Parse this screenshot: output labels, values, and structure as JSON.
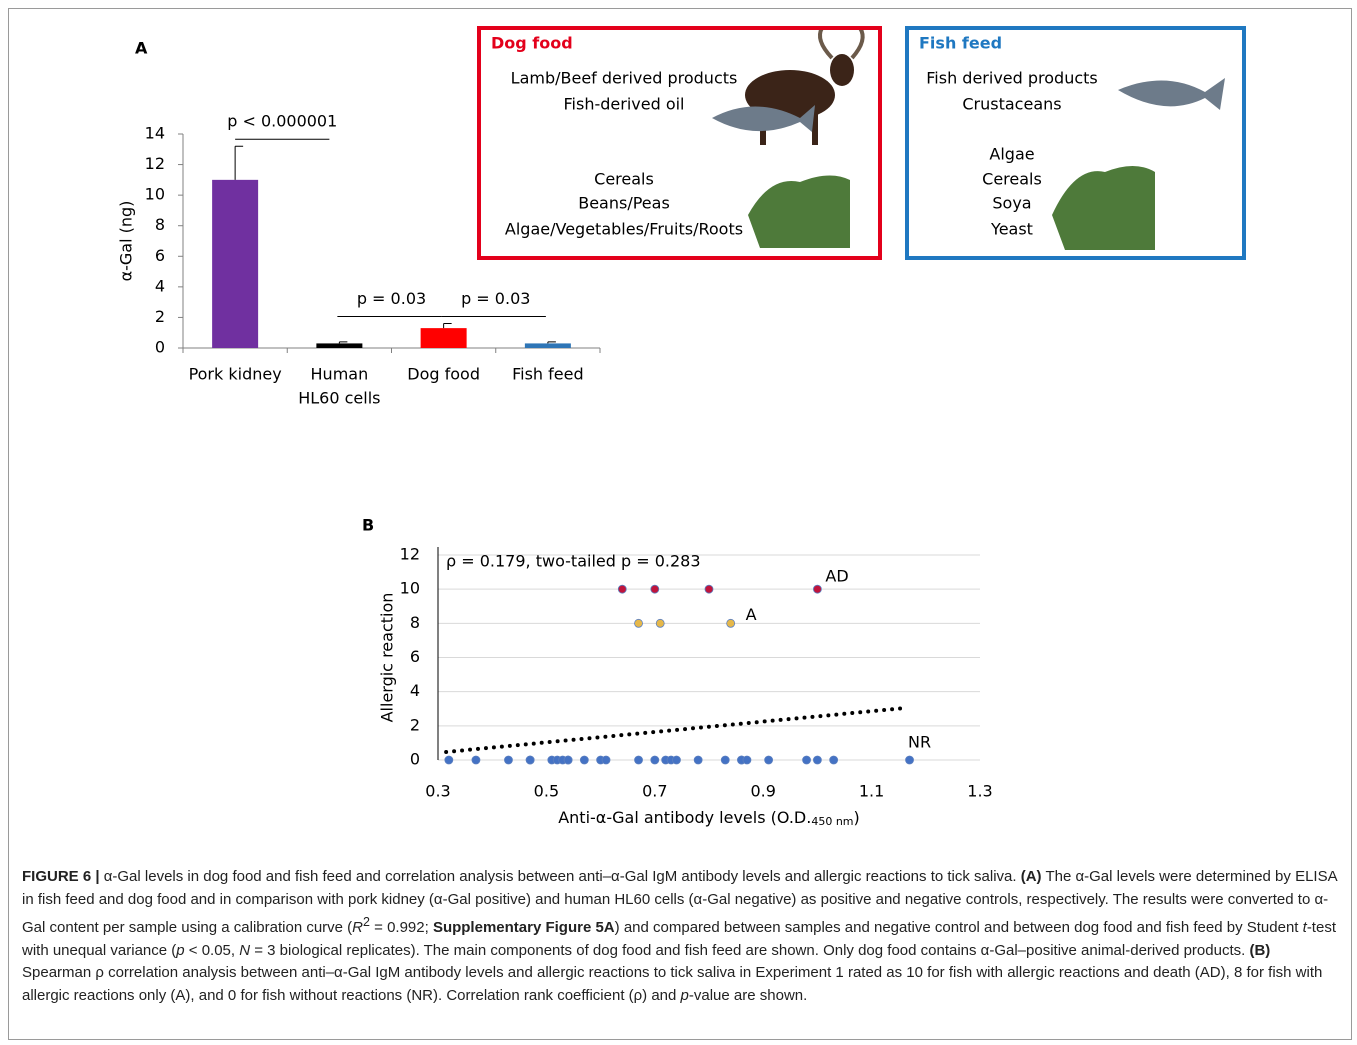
{
  "chart_data": [
    {
      "type": "bar",
      "panel_label": "A",
      "categories": [
        "Pork kidney",
        [
          "Human",
          "HL60 cells"
        ],
        "Dog food",
        "Fish feed"
      ],
      "values": [
        11,
        0.3,
        1.3,
        0.3
      ],
      "errors": [
        2.2,
        0.1,
        0.3,
        0.1
      ],
      "colors": [
        "#7030a0",
        "#000000",
        "#ff0000",
        "#2e75b6"
      ],
      "ylabel": "α-Gal (ng)",
      "ylim": [
        0,
        14
      ],
      "yticks": [
        0,
        2,
        4,
        6,
        8,
        10,
        12,
        14
      ],
      "annotations": [
        "p < 0.000001",
        "p = 0.03",
        "p = 0.03"
      ]
    },
    {
      "type": "scatter",
      "panel_label": "B",
      "annotation": "ρ  = 0.179, two-tailed p = 0.283",
      "xlabel": [
        "Anti-α-Gal antibody levels (O.D.",
        "450 nm",
        ")"
      ],
      "ylabel": "Allergic reaction",
      "xlim": [
        0.3,
        1.3
      ],
      "xticks": [
        0.3,
        0.5,
        0.7,
        0.9,
        1.1,
        1.3
      ],
      "ylim": [
        0,
        12
      ],
      "yticks": [
        0,
        2,
        4,
        6,
        8,
        10,
        12
      ],
      "grid": true,
      "series": [
        {
          "name": "AD",
          "color": "#c0143c",
          "x": [
            0.64,
            0.7,
            0.8,
            1.0
          ],
          "values": [
            10,
            10,
            10,
            10
          ]
        },
        {
          "name": "A",
          "color": "#e6b84a",
          "x": [
            0.67,
            0.71,
            0.84
          ],
          "values": [
            8,
            8,
            8
          ]
        },
        {
          "name": "NR",
          "color": "#4472c4",
          "x": [
            0.32,
            0.37,
            0.43,
            0.47,
            0.47,
            0.51,
            0.52,
            0.53,
            0.54,
            0.54,
            0.57,
            0.6,
            0.61,
            0.67,
            0.7,
            0.72,
            0.73,
            0.74,
            0.78,
            0.83,
            0.86,
            0.86,
            0.87,
            0.91,
            0.98,
            1.0,
            1.03,
            1.17
          ],
          "values": [
            0,
            0,
            0,
            0,
            0,
            0,
            0,
            0,
            0,
            0,
            0,
            0,
            0,
            0,
            0,
            0,
            0,
            0,
            0,
            0,
            0,
            0,
            0,
            0,
            0,
            0,
            0,
            0
          ]
        }
      ],
      "trendline": {
        "x": [
          0.315,
          1.16
        ],
        "y": [
          0.47,
          3.04
        ]
      }
    }
  ],
  "food_boxes": [
    {
      "title": "Dog food",
      "color": "#e3001b",
      "groups": [
        [
          "Lamb/Beef derived products",
          "Fish-derived oil"
        ],
        [
          "Cereals",
          "Beans/Peas",
          "Algae/Vegetables/Fruits/Roots"
        ]
      ]
    },
    {
      "title": "Fish feed",
      "color": "#1f78c1",
      "groups": [
        [
          "Fish derived products",
          "Crustaceans"
        ],
        [
          "Algae",
          "Cereals",
          "Soya",
          "Yeast"
        ]
      ]
    }
  ],
  "caption": {
    "parts": [
      "FIGURE 6 |",
      " α-Gal levels in dog food and fish feed and correlation analysis between anti–α-Gal IgM antibody levels and allergic reactions to tick saliva. ",
      "(A)",
      " The α-Gal levels were determined by ELISA in fish feed and dog food and in comparison with pork kidney (α-Gal positive) and human HL60 cells (α-Gal negative) as positive and negative controls, respectively. The results were converted to α-Gal content per sample using a calibration curve (",
      "R",
      "2",
      " = 0.992; ",
      "Supplementary Figure 5A",
      ") and compared between samples and negative control and between dog food and fish feed by Student ",
      "t",
      "-test with unequal variance (",
      "p",
      " < 0.05, ",
      "N",
      " = 3 biological replicates). The main components of dog food and fish feed are shown. Only dog food contains α-Gal–positive animal-derived products. ",
      "(B)",
      " Spearman ρ correlation analysis between anti–α-Gal IgM antibody levels and allergic reactions to tick saliva in Experiment 1 rated as 10 for fish with allergic reactions and death (AD), 8 for fish with allergic reactions only (A), and 0 for fish without reactions (NR). Correlation rank coefficient (ρ) and ",
      "p",
      "-value are shown."
    ]
  }
}
